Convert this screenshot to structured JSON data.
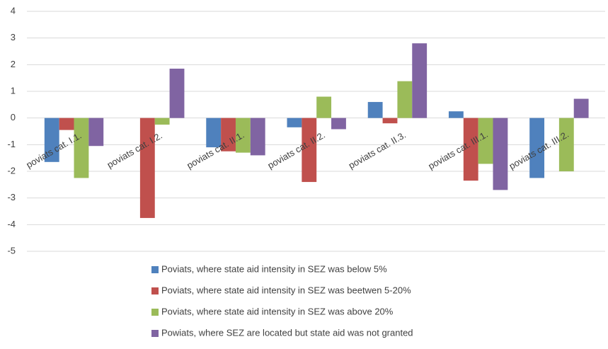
{
  "chart_data": {
    "type": "bar",
    "categories": [
      "poviats cat. I.1.",
      "poviats cat. I.2.",
      "poviats cat. II.1.",
      "poviats cat. II.2.",
      "poviats cat. II.3.",
      "poviats cat. III.1.",
      "poviats cat. III.2."
    ],
    "series": [
      {
        "name": "Poviats, where state aid intensity in SEZ was below 5%",
        "color": "#4f81bd",
        "values": [
          -1.65,
          0,
          -1.1,
          -0.35,
          0.6,
          0.25,
          -2.25
        ]
      },
      {
        "name": "Poviats, where state aid intensity in SEZ was beetwen 5-20%",
        "color": "#c0504d",
        "values": [
          -0.45,
          -3.75,
          -1.25,
          -2.4,
          -0.2,
          -2.35,
          0
        ]
      },
      {
        "name": "Poviats, where state aid intensity in SEZ was above 20%",
        "color": "#9bbb59",
        "values": [
          -2.25,
          -0.25,
          -1.3,
          0.8,
          1.38,
          -1.72,
          -2.0
        ]
      },
      {
        "name": "Powiats, where SEZ are located but state aid was not granted",
        "color": "#8064a2",
        "values": [
          -1.05,
          1.85,
          -1.4,
          -0.42,
          2.8,
          -2.7,
          0.72
        ]
      }
    ],
    "ylim": [
      -5,
      4
    ],
    "yticks": [
      -5,
      -4,
      -3,
      -2,
      -1,
      0,
      1,
      2,
      3,
      4
    ],
    "grid": true,
    "legend": "bottom"
  }
}
